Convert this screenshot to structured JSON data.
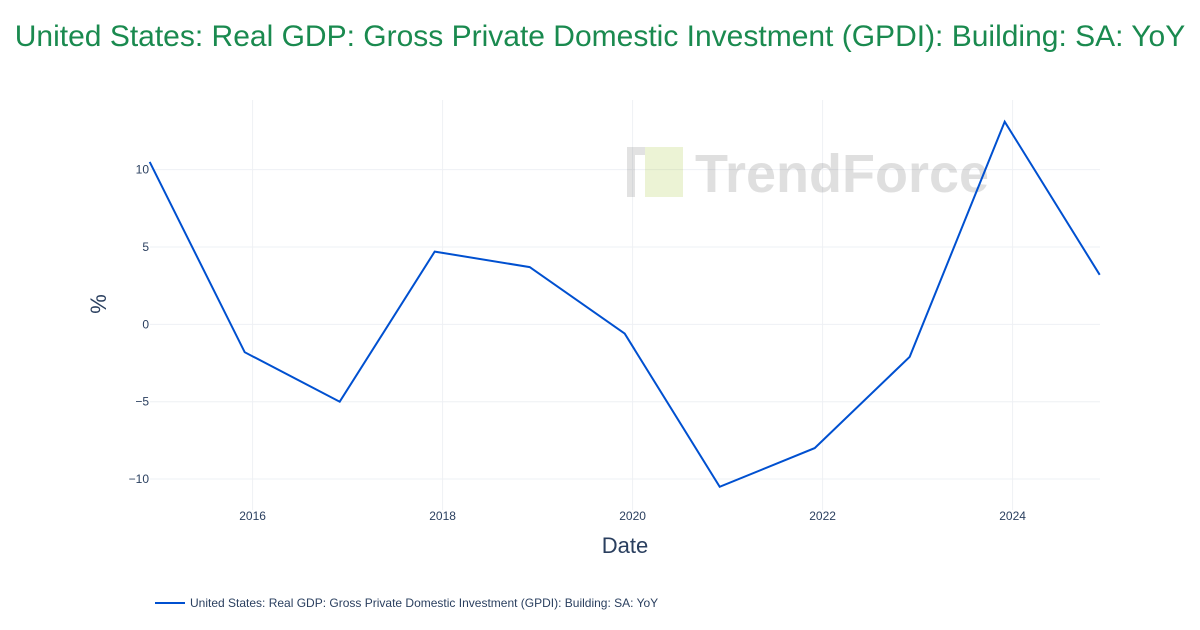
{
  "chart_data": {
    "type": "line",
    "title": "United States: Real GDP: Gross Private Domestic Investment (GPDI): Building: SA: YoY",
    "xlabel": "Date",
    "ylabel": "%",
    "x": [
      "2014-12",
      "2015-12",
      "2016-12",
      "2017-12",
      "2018-12",
      "2019-12",
      "2020-12",
      "2021-12",
      "2022-12",
      "2023-12",
      "2024-12"
    ],
    "series": [
      {
        "name": "United States: Real GDP: Gross Private Domestic Investment (GPDI): Building: SA: YoY",
        "color": "#0050d0",
        "values": [
          10.5,
          -1.8,
          -5.0,
          4.7,
          3.7,
          -0.6,
          -10.5,
          -8.0,
          -2.1,
          13.1,
          3.2
        ]
      }
    ],
    "xticks": [
      "2016",
      "2018",
      "2020",
      "2022",
      "2024"
    ],
    "yticks": [
      {
        "v": 10,
        "label": "10"
      },
      {
        "v": 5,
        "label": "5"
      },
      {
        "v": 0,
        "label": "0"
      },
      {
        "v": -5,
        "label": "−5"
      },
      {
        "v": -10,
        "label": "−10"
      }
    ],
    "xlim": [
      2014.92,
      2024.92
    ],
    "ylim": [
      -12,
      14.5
    ],
    "grid": true,
    "legend_placement": "bottom-left",
    "watermark": "TrendForce"
  }
}
